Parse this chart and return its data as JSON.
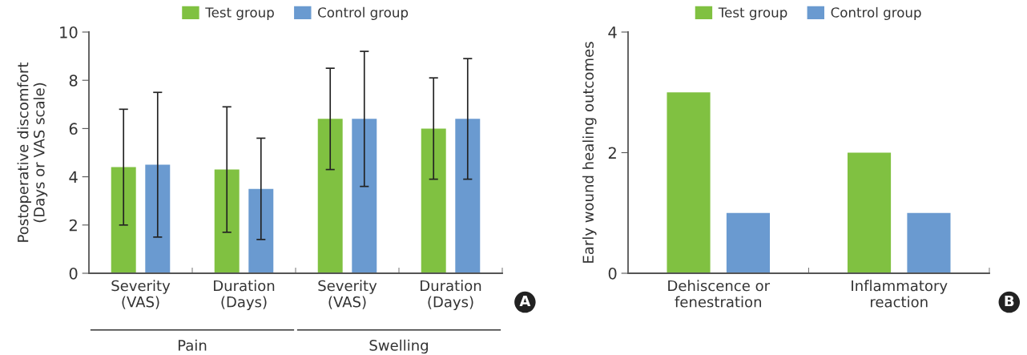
{
  "chart_data": [
    {
      "type": "bar",
      "ylabel": "Postoperative discomfort\n(Days or VAS scale)",
      "categories": [
        "Severity\n(VAS)",
        "Duration\n(Days)",
        "Severity\n(VAS)",
        "Duration\n(Days)"
      ],
      "series": [
        {
          "name": "Test group",
          "color": "#80c141",
          "values": [
            4.4,
            4.3,
            6.4,
            6.0
          ],
          "errors": [
            [
              2.0,
              6.8
            ],
            [
              1.7,
              6.9
            ],
            [
              4.3,
              8.5
            ],
            [
              3.9,
              8.1
            ]
          ]
        },
        {
          "name": "Control group",
          "color": "#6a9ad0",
          "values": [
            4.5,
            3.5,
            6.4,
            6.4
          ],
          "errors": [
            [
              1.5,
              7.5
            ],
            [
              1.4,
              5.6
            ],
            [
              3.6,
              9.2
            ],
            [
              3.9,
              8.9
            ]
          ]
        }
      ],
      "ylim": [
        0,
        10
      ],
      "yticks": [
        0,
        2,
        4,
        6,
        8,
        10
      ],
      "legend": "top",
      "grid": false,
      "annotations": [
        "Pain",
        "Swelling",
        "A"
      ]
    },
    {
      "type": "bar",
      "ylabel": "Early wound healing outcomes",
      "categories": [
        "Dehiscence or\nfenestration",
        "Inflammatory\nreaction"
      ],
      "series": [
        {
          "name": "Test group",
          "color": "#80c141",
          "values": [
            3,
            2
          ]
        },
        {
          "name": "Control group",
          "color": "#6a9ad0",
          "values": [
            1,
            1
          ]
        }
      ],
      "ylim": [
        0,
        4
      ],
      "yticks": [
        0,
        2,
        4
      ],
      "legend": "top",
      "grid": false,
      "annotations": [
        "B"
      ]
    }
  ]
}
